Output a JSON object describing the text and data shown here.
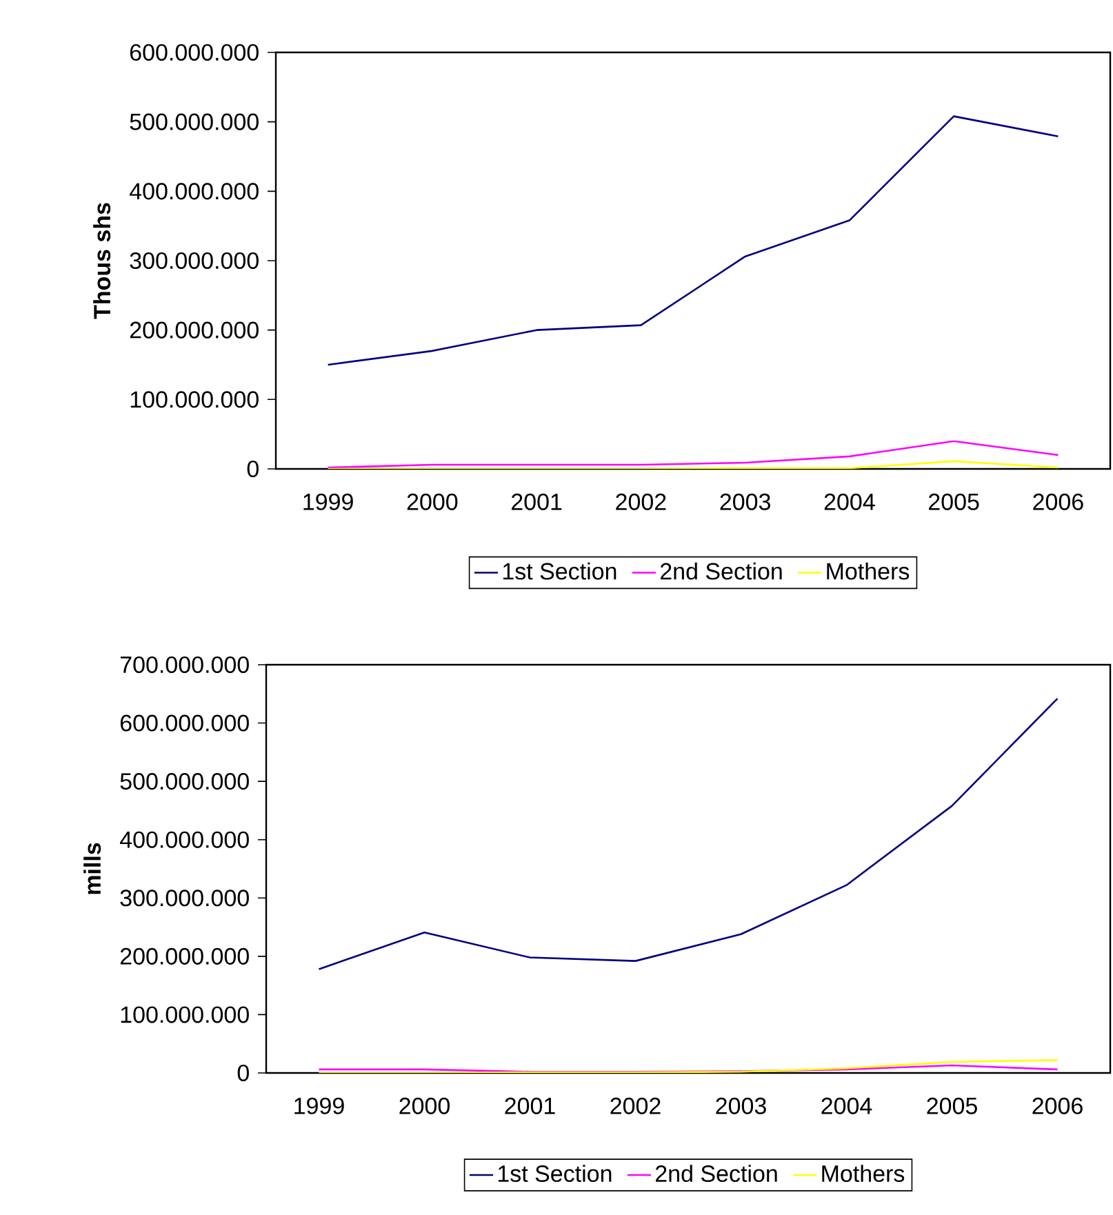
{
  "chart_data": [
    {
      "type": "line",
      "ylabel": "Thous shs",
      "categories": [
        "1999",
        "2000",
        "2001",
        "2002",
        "2003",
        "2004",
        "2005",
        "2006"
      ],
      "series": [
        {
          "name": "1st Section",
          "color": "#000080",
          "values": [
            150000000,
            170000000,
            200000000,
            207000000,
            306000000,
            358000000,
            508000000,
            479000000
          ]
        },
        {
          "name": "2nd Section",
          "color": "#ff00ff",
          "values": [
            2000000,
            6000000,
            6000000,
            6000000,
            9000000,
            18000000,
            40000000,
            20000000
          ]
        },
        {
          "name": "Mothers",
          "color": "#ffff00",
          "values": [
            0,
            0,
            0,
            0,
            1000000,
            1000000,
            11000000,
            2000000
          ]
        }
      ],
      "ylim": [
        0,
        600000000
      ],
      "yticks": [
        {
          "value": 0,
          "label": "0"
        },
        {
          "value": 100000000,
          "label": "100.000.000"
        },
        {
          "value": 200000000,
          "label": "200.000.000"
        },
        {
          "value": 300000000,
          "label": "300.000.000"
        },
        {
          "value": 400000000,
          "label": "400.000.000"
        },
        {
          "value": 500000000,
          "label": "500.000.000"
        },
        {
          "value": 600000000,
          "label": "600.000.000"
        }
      ],
      "grid": false,
      "legend": "bottom",
      "marker": "none",
      "line_style": "solid"
    },
    {
      "type": "line",
      "ylabel": "mills",
      "categories": [
        "1999",
        "2000",
        "2001",
        "2002",
        "2003",
        "2004",
        "2005",
        "2006"
      ],
      "series": [
        {
          "name": "1st Section",
          "color": "#000080",
          "values": [
            178000000,
            241000000,
            198000000,
            192000000,
            238000000,
            322000000,
            458000000,
            642000000
          ]
        },
        {
          "name": "2nd Section",
          "color": "#ff00ff",
          "values": [
            6000000,
            6000000,
            2000000,
            2000000,
            3000000,
            6000000,
            13000000,
            6000000
          ]
        },
        {
          "name": "Mothers",
          "color": "#ffff00",
          "values": [
            0,
            0,
            1000000,
            1000000,
            2000000,
            8000000,
            19000000,
            22000000
          ]
        }
      ],
      "ylim": [
        0,
        700000000
      ],
      "yticks": [
        {
          "value": 0,
          "label": "0"
        },
        {
          "value": 100000000,
          "label": "100.000.000"
        },
        {
          "value": 200000000,
          "label": "200.000.000"
        },
        {
          "value": 300000000,
          "label": "300.000.000"
        },
        {
          "value": 400000000,
          "label": "400.000.000"
        },
        {
          "value": 500000000,
          "label": "500.000.000"
        },
        {
          "value": 600000000,
          "label": "600.000.000"
        },
        {
          "value": 700000000,
          "label": "700.000.000"
        }
      ],
      "grid": false,
      "legend": "bottom",
      "marker": "none",
      "line_style": "solid"
    }
  ]
}
